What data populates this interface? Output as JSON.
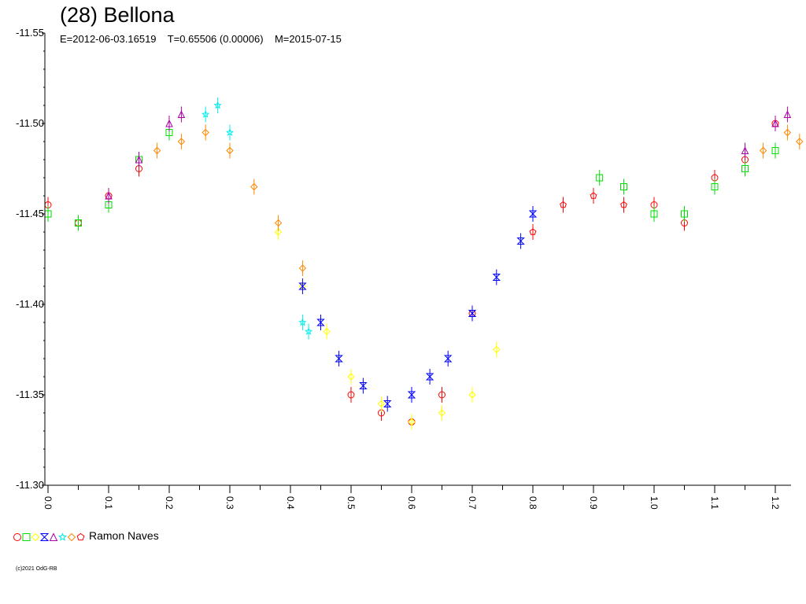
{
  "title": "(28) Bellona",
  "subtitle": "E=2012-06-03.16519    T=0.65506 (0.00006)    M=2015-07-15",
  "legend": {
    "text": "Ramon Naves",
    "markers": [
      {
        "shape": "circle",
        "color": "#ff0000"
      },
      {
        "shape": "square",
        "color": "#00dd00"
      },
      {
        "shape": "diamond",
        "color": "#ffff00"
      },
      {
        "shape": "hourglass",
        "color": "#0000ff"
      },
      {
        "shape": "triangle",
        "color": "#aa00aa"
      },
      {
        "shape": "star",
        "color": "#00eeee"
      },
      {
        "shape": "diamond",
        "color": "#ff8800"
      },
      {
        "shape": "pentagon",
        "color": "#ff0000"
      }
    ]
  },
  "copyright": "(c)2021 OdG-RB",
  "chart_data": {
    "type": "scatter",
    "title": "(28) Bellona",
    "xlabel": "",
    "ylabel": "",
    "xlim": [
      0,
      1.23
    ],
    "ylim": [
      -11.55,
      -11.3
    ],
    "y_inverted": true,
    "grid": false,
    "x_ticks": [
      "0.0",
      "0.1",
      "0.2",
      "0.3",
      "0.4",
      "0.5",
      "0.6",
      "0.7",
      "0.8",
      "0.9",
      "1.0",
      "1.1",
      "1.2"
    ],
    "y_ticks": [
      "-11.55",
      "-11.50",
      "-11.45",
      "-11.40",
      "-11.35",
      "-11.30"
    ],
    "series": [
      {
        "color": "#ff0000",
        "marker": "circle",
        "x": [
          0.0,
          0.05,
          0.1,
          0.15,
          0.5,
          0.55,
          0.6,
          0.65,
          0.7,
          1.0,
          1.05,
          1.1,
          1.15,
          1.2
        ],
        "y": [
          -11.455,
          -11.445,
          -11.46,
          -11.475,
          -11.35,
          -11.34,
          -11.335,
          -11.35,
          -11.395,
          -11.455,
          -11.445,
          -11.47,
          -11.48,
          -11.5
        ]
      },
      {
        "color": "#00dd00",
        "marker": "square",
        "x": [
          0.0,
          0.05,
          0.1,
          0.15,
          0.2,
          0.91,
          0.95,
          1.0,
          1.05,
          1.1,
          1.15,
          1.2
        ],
        "y": [
          -11.45,
          -11.445,
          -11.455,
          -11.48,
          -11.495,
          -11.47,
          -11.465,
          -11.45,
          -11.45,
          -11.465,
          -11.475,
          -11.485
        ]
      },
      {
        "color": "#ffff00",
        "marker": "diamond",
        "x": [
          0.38,
          0.42,
          0.46,
          0.5,
          0.55,
          0.6,
          0.65,
          0.7,
          0.74
        ],
        "y": [
          -11.44,
          -11.41,
          -11.385,
          -11.36,
          -11.345,
          -11.335,
          -11.34,
          -11.35,
          -11.375
        ]
      },
      {
        "color": "#0000ff",
        "marker": "hourglass",
        "x": [
          0.42,
          0.45,
          0.48,
          0.52,
          0.56,
          0.6,
          0.63,
          0.66,
          0.7,
          0.74,
          0.78,
          0.8
        ],
        "y": [
          -11.41,
          -11.39,
          -11.37,
          -11.355,
          -11.345,
          -11.35,
          -11.36,
          -11.37,
          -11.395,
          -11.415,
          -11.435,
          -11.45
        ]
      },
      {
        "color": "#aa00aa",
        "marker": "triangle",
        "x": [
          0.1,
          0.15,
          0.2,
          0.22,
          1.15,
          1.2,
          1.22
        ],
        "y": [
          -11.46,
          -11.48,
          -11.5,
          -11.505,
          -11.485,
          -11.5,
          -11.505
        ]
      },
      {
        "color": "#00eeee",
        "marker": "star",
        "x": [
          0.26,
          0.28,
          0.3,
          0.42,
          0.43
        ],
        "y": [
          -11.505,
          -11.51,
          -11.495,
          -11.39,
          -11.385
        ]
      },
      {
        "color": "#ff8800",
        "marker": "diamond",
        "x": [
          0.18,
          0.22,
          0.26,
          0.3,
          0.34,
          0.38,
          0.42,
          1.18,
          1.22,
          1.24
        ],
        "y": [
          -11.485,
          -11.49,
          -11.495,
          -11.485,
          -11.465,
          -11.445,
          -11.42,
          -11.485,
          -11.495,
          -11.49
        ]
      },
      {
        "color": "#ff0000",
        "marker": "pentagon",
        "x": [
          0.8,
          0.85,
          0.9,
          0.95
        ],
        "y": [
          -11.44,
          -11.455,
          -11.46,
          -11.455
        ]
      }
    ]
  }
}
